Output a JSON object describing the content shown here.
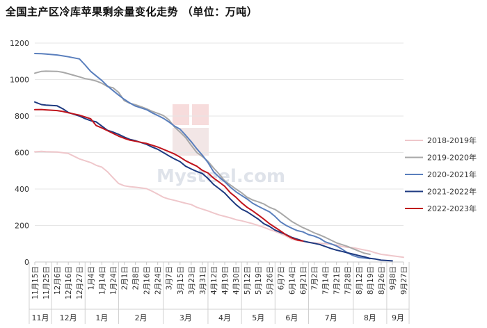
{
  "chart_data": {
    "type": "line",
    "title": "全国主产区冷库苹果剩余量变化走势 （单位：万吨）",
    "watermark": "Mysteel.com",
    "ylim": [
      0,
      1200
    ],
    "yticks": [
      0,
      200,
      400,
      600,
      800,
      1000,
      1200
    ],
    "x": [
      "11月15日",
      "11月25日",
      "12月6日",
      "12月16日",
      "12月27日",
      "1月4日",
      "1月14日",
      "1月24日",
      "2月1日",
      "2月8日",
      "2月16日",
      "2月24日",
      "3月7日",
      "3月15日",
      "3月23日",
      "3月31日",
      "4月12日",
      "4月19日",
      "4月30日",
      "5月12日",
      "5月19日",
      "5月26日",
      "6月7日",
      "6月14日",
      "6月21日",
      "7月2日",
      "7月14日",
      "7月21日",
      "7月28日",
      "8月12日",
      "8月19日",
      "8月26日",
      "9月8日",
      "9月27日"
    ],
    "month_groups": [
      {
        "label": "11月",
        "start": 0,
        "end": 1
      },
      {
        "label": "12月",
        "start": 2,
        "end": 4
      },
      {
        "label": "1月",
        "start": 5,
        "end": 7
      },
      {
        "label": "2月",
        "start": 8,
        "end": 11
      },
      {
        "label": "3月",
        "start": 12,
        "end": 15
      },
      {
        "label": "4月",
        "start": 16,
        "end": 18
      },
      {
        "label": "5月",
        "start": 19,
        "end": 21
      },
      {
        "label": "6月",
        "start": 22,
        "end": 24
      },
      {
        "label": "7月",
        "start": 25,
        "end": 28
      },
      {
        "label": "8月",
        "start": 29,
        "end": 31
      },
      {
        "label": "9月",
        "start": 32,
        "end": 33
      }
    ],
    "legend_position": "right",
    "series": [
      {
        "name": "2018-2019年",
        "color": "#efc7cb",
        "points": [
          [
            0,
            604
          ],
          [
            0.6,
            607
          ],
          [
            1,
            605
          ],
          [
            2,
            603
          ],
          [
            3,
            595
          ],
          [
            4,
            565
          ],
          [
            5,
            545
          ],
          [
            5.5,
            530
          ],
          [
            6,
            520
          ],
          [
            6.5,
            495
          ],
          [
            7,
            462
          ],
          [
            7.5,
            430
          ],
          [
            8,
            418
          ],
          [
            8.5,
            413
          ],
          [
            9,
            410
          ],
          [
            9.5,
            406
          ],
          [
            10,
            402
          ],
          [
            10.5,
            388
          ],
          [
            11,
            372
          ],
          [
            11.5,
            355
          ],
          [
            12,
            345
          ],
          [
            12.5,
            338
          ],
          [
            13,
            330
          ],
          [
            13.5,
            322
          ],
          [
            14,
            315
          ],
          [
            14.5,
            300
          ],
          [
            15,
            290
          ],
          [
            15.5,
            280
          ],
          [
            16,
            268
          ],
          [
            16.5,
            258
          ],
          [
            17,
            250
          ],
          [
            17.5,
            242
          ],
          [
            18,
            232
          ],
          [
            18.5,
            226
          ],
          [
            19,
            218
          ],
          [
            19.5,
            210
          ],
          [
            20,
            200
          ],
          [
            20.5,
            190
          ],
          [
            21,
            178
          ],
          [
            21.5,
            168
          ],
          [
            22,
            155
          ],
          [
            22.5,
            142
          ],
          [
            23,
            125
          ],
          [
            23.5,
            118
          ],
          [
            24,
            112
          ],
          [
            24.5,
            108
          ],
          [
            25,
            105
          ],
          [
            25.5,
            103
          ],
          [
            26,
            100
          ],
          [
            26.5,
            98
          ],
          [
            27,
            93
          ],
          [
            27.5,
            85
          ],
          [
            28,
            80
          ],
          [
            28.5,
            78
          ],
          [
            29,
            72
          ],
          [
            29.5,
            66
          ],
          [
            30,
            60
          ],
          [
            30.5,
            50
          ],
          [
            31,
            42
          ],
          [
            31.5,
            38
          ],
          [
            32,
            34
          ],
          [
            32.5,
            30
          ],
          [
            33,
            26
          ]
        ]
      },
      {
        "name": "2019-2020年",
        "color": "#a8a8a8",
        "points": [
          [
            0,
            1035
          ],
          [
            0.6,
            1045
          ],
          [
            1,
            1046
          ],
          [
            2,
            1045
          ],
          [
            2.5,
            1040
          ],
          [
            3,
            1032
          ],
          [
            4,
            1015
          ],
          [
            4.5,
            1005
          ],
          [
            5,
            1000
          ],
          [
            5.5,
            992
          ],
          [
            6,
            980
          ],
          [
            6.5,
            962
          ],
          [
            7,
            955
          ],
          [
            7.5,
            930
          ],
          [
            8,
            885
          ],
          [
            8.5,
            870
          ],
          [
            9,
            862
          ],
          [
            9.5,
            852
          ],
          [
            10,
            840
          ],
          [
            10.5,
            826
          ],
          [
            11,
            815
          ],
          [
            11.5,
            803
          ],
          [
            12,
            780
          ],
          [
            12.5,
            740
          ],
          [
            13,
            712
          ],
          [
            13.5,
            682
          ],
          [
            14,
            640
          ],
          [
            14.5,
            600
          ],
          [
            15,
            578
          ],
          [
            15.5,
            552
          ],
          [
            16,
            515
          ],
          [
            16.5,
            482
          ],
          [
            17,
            445
          ],
          [
            17.5,
            422
          ],
          [
            18,
            400
          ],
          [
            18.5,
            380
          ],
          [
            19,
            355
          ],
          [
            19.5,
            340
          ],
          [
            20,
            330
          ],
          [
            20.5,
            318
          ],
          [
            21,
            300
          ],
          [
            21.5,
            288
          ],
          [
            22,
            268
          ],
          [
            22.5,
            245
          ],
          [
            23,
            222
          ],
          [
            23.5,
            205
          ],
          [
            24,
            188
          ],
          [
            24.5,
            175
          ],
          [
            25,
            160
          ],
          [
            25.5,
            148
          ],
          [
            26,
            135
          ],
          [
            26.5,
            120
          ],
          [
            27,
            105
          ],
          [
            27.5,
            95
          ],
          [
            28,
            85
          ],
          [
            28.5,
            72
          ],
          [
            29,
            60
          ],
          [
            29.5,
            48
          ],
          [
            30,
            42
          ]
        ]
      },
      {
        "name": "2020-2021年",
        "color": "#5a7fbd",
        "points": [
          [
            0,
            1143
          ],
          [
            0.6,
            1142
          ],
          [
            1,
            1140
          ],
          [
            2,
            1135
          ],
          [
            2.5,
            1130
          ],
          [
            3,
            1125
          ],
          [
            4,
            1113
          ],
          [
            4.5,
            1080
          ],
          [
            5,
            1045
          ],
          [
            5.5,
            1020
          ],
          [
            6,
            995
          ],
          [
            6.5,
            965
          ],
          [
            7,
            940
          ],
          [
            7.5,
            915
          ],
          [
            8,
            892
          ],
          [
            8.5,
            872
          ],
          [
            9,
            855
          ],
          [
            9.5,
            845
          ],
          [
            10,
            835
          ],
          [
            10.5,
            818
          ],
          [
            11,
            803
          ],
          [
            11.5,
            788
          ],
          [
            12,
            768
          ],
          [
            12.5,
            745
          ],
          [
            13,
            728
          ],
          [
            13.5,
            695
          ],
          [
            14,
            660
          ],
          [
            14.5,
            620
          ],
          [
            15,
            585
          ],
          [
            15.5,
            545
          ],
          [
            16,
            495
          ],
          [
            16.5,
            465
          ],
          [
            17,
            440
          ],
          [
            17.5,
            410
          ],
          [
            18,
            385
          ],
          [
            18.5,
            365
          ],
          [
            19,
            345
          ],
          [
            19.5,
            322
          ],
          [
            20,
            305
          ],
          [
            20.5,
            290
          ],
          [
            21,
            275
          ],
          [
            21.5,
            250
          ],
          [
            22,
            220
          ],
          [
            22.5,
            200
          ],
          [
            23,
            185
          ],
          [
            23.5,
            172
          ],
          [
            24,
            165
          ],
          [
            24.5,
            150
          ],
          [
            25,
            142
          ],
          [
            25.5,
            130
          ],
          [
            26,
            110
          ],
          [
            26.5,
            100
          ],
          [
            27,
            88
          ],
          [
            27.5,
            70
          ],
          [
            28,
            50
          ],
          [
            28.5,
            35
          ],
          [
            29,
            25
          ],
          [
            30,
            18
          ]
        ]
      },
      {
        "name": "2021-2022年",
        "color": "#1e3a80",
        "points": [
          [
            0,
            877
          ],
          [
            0.6,
            863
          ],
          [
            1,
            860
          ],
          [
            2,
            856
          ],
          [
            2.5,
            840
          ],
          [
            3,
            820
          ],
          [
            4,
            800
          ],
          [
            4.5,
            786
          ],
          [
            5,
            775
          ],
          [
            5.5,
            768
          ],
          [
            6,
            745
          ],
          [
            6.5,
            722
          ],
          [
            7,
            712
          ],
          [
            7.5,
            700
          ],
          [
            8,
            685
          ],
          [
            8.5,
            672
          ],
          [
            9,
            665
          ],
          [
            9.5,
            655
          ],
          [
            10,
            645
          ],
          [
            10.5,
            630
          ],
          [
            11,
            618
          ],
          [
            11.5,
            600
          ],
          [
            12,
            582
          ],
          [
            12.5,
            565
          ],
          [
            13,
            550
          ],
          [
            13.5,
            525
          ],
          [
            14,
            510
          ],
          [
            14.5,
            496
          ],
          [
            15,
            485
          ],
          [
            15.5,
            458
          ],
          [
            16,
            425
          ],
          [
            16.5,
            402
          ],
          [
            17,
            378
          ],
          [
            17.5,
            345
          ],
          [
            18,
            315
          ],
          [
            18.5,
            290
          ],
          [
            19,
            275
          ],
          [
            19.5,
            255
          ],
          [
            20,
            235
          ],
          [
            20.5,
            210
          ],
          [
            21,
            195
          ],
          [
            21.5,
            175
          ],
          [
            22,
            162
          ],
          [
            22.5,
            150
          ],
          [
            23,
            135
          ],
          [
            23.5,
            125
          ],
          [
            24,
            115
          ],
          [
            24.5,
            108
          ],
          [
            25,
            102
          ],
          [
            25.5,
            96
          ],
          [
            26,
            85
          ],
          [
            26.5,
            74
          ],
          [
            27,
            65
          ],
          [
            27.5,
            58
          ],
          [
            28,
            50
          ],
          [
            28.5,
            43
          ],
          [
            29,
            35
          ],
          [
            29.5,
            28
          ],
          [
            30,
            20
          ],
          [
            30.5,
            16
          ],
          [
            31,
            10
          ],
          [
            31.5,
            8
          ],
          [
            32,
            6
          ]
        ]
      },
      {
        "name": "2022-2023年",
        "color": "#c0141c",
        "points": [
          [
            0,
            835
          ],
          [
            0.6,
            836
          ],
          [
            1,
            834
          ],
          [
            2,
            830
          ],
          [
            2.5,
            825
          ],
          [
            3,
            818
          ],
          [
            4,
            805
          ],
          [
            4.5,
            795
          ],
          [
            5,
            785
          ],
          [
            5.5,
            748
          ],
          [
            6,
            735
          ],
          [
            6.5,
            720
          ],
          [
            7,
            705
          ],
          [
            7.5,
            690
          ],
          [
            8,
            678
          ],
          [
            8.5,
            668
          ],
          [
            9,
            662
          ],
          [
            9.5,
            656
          ],
          [
            10,
            650
          ],
          [
            10.5,
            640
          ],
          [
            11,
            630
          ],
          [
            11.5,
            618
          ],
          [
            12,
            605
          ],
          [
            12.5,
            592
          ],
          [
            13,
            575
          ],
          [
            13.5,
            555
          ],
          [
            14,
            540
          ],
          [
            14.5,
            525
          ],
          [
            15,
            502
          ],
          [
            15.5,
            488
          ],
          [
            16,
            460
          ],
          [
            16.5,
            438
          ],
          [
            17,
            415
          ],
          [
            17.5,
            380
          ],
          [
            18,
            355
          ],
          [
            18.5,
            325
          ],
          [
            19,
            300
          ],
          [
            19.5,
            280
          ],
          [
            20,
            258
          ],
          [
            20.5,
            235
          ],
          [
            21,
            210
          ],
          [
            21.5,
            190
          ],
          [
            22,
            170
          ],
          [
            22.5,
            148
          ],
          [
            23,
            132
          ],
          [
            23.5,
            120
          ],
          [
            24,
            115
          ]
        ]
      }
    ]
  }
}
